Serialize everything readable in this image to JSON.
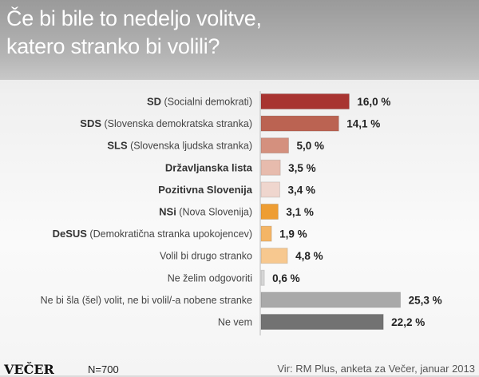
{
  "header": {
    "title_line1": "Če bi bile to nedeljo volitve,",
    "title_line2": "katero stranko bi volili?"
  },
  "chart_data": {
    "type": "bar",
    "orientation": "horizontal",
    "title": "Če bi bile to nedeljo volitve, katero stranko bi volili?",
    "categories": [
      {
        "bold": "SD",
        "light": "(Socialni demokrati)"
      },
      {
        "bold": "SDS",
        "light": "(Slovenska demokratska stranka)"
      },
      {
        "bold": "SLS",
        "light": "(Slovenska ljudska stranka)"
      },
      {
        "bold": "Državljanska lista",
        "light": ""
      },
      {
        "bold": "Pozitivna Slovenija",
        "light": ""
      },
      {
        "bold": "NSi",
        "light": "(Nova Slovenija)"
      },
      {
        "bold": "DeSUS",
        "light": "(Demokratična stranka upokojencev)"
      },
      {
        "bold": "",
        "light": "Volil bi drugo stranko"
      },
      {
        "bold": "",
        "light": "Ne želim odgovoriti"
      },
      {
        "bold": "",
        "light": "Ne bi šla (šel) volit, ne bi volil/-a nobene stranke"
      },
      {
        "bold": "",
        "light": "Ne vem"
      }
    ],
    "values": [
      16.0,
      14.1,
      5.0,
      3.5,
      3.4,
      3.1,
      1.9,
      4.8,
      0.6,
      25.3,
      22.2
    ],
    "value_labels": [
      "16,0 %",
      "14,1 %",
      "5,0 %",
      "3,5 %",
      "3,4 %",
      "3,1 %",
      "1,9 %",
      "4,8 %",
      "0,6 %",
      "25,3 %",
      "22,2 %"
    ],
    "colors": [
      "#a83431",
      "#bb6352",
      "#d4907e",
      "#e7bbad",
      "#efd6ce",
      "#ee9d33",
      "#f4b566",
      "#f7c88f",
      "#d6d6d6",
      "#a9a9a9",
      "#727272"
    ],
    "xlim": [
      0,
      27
    ],
    "grid": false,
    "legend": "none"
  },
  "footer": {
    "logo": "VEČER",
    "sample": "N=700",
    "source": "Vir: RM Plus, anketa za Večer, januar 2013"
  }
}
